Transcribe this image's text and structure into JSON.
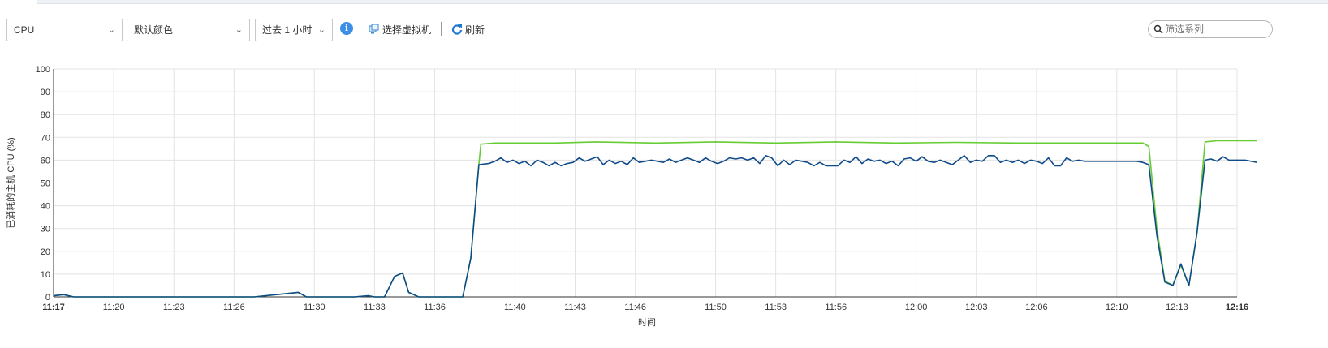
{
  "toolbar": {
    "metric_select": "CPU",
    "color_select": "默认颜色",
    "time_select": "过去 1 小时",
    "select_vm_label": "选择虚拟机",
    "refresh_label": "刷新",
    "filter_placeholder": "筛选系列",
    "info_glyph": "i"
  },
  "chart_data": {
    "type": "line",
    "ylabel": "已消耗的主机 CPU (%)",
    "xlabel": "时间",
    "ylim": [
      0,
      100
    ],
    "yticks": [
      0,
      10,
      20,
      30,
      40,
      50,
      60,
      70,
      80,
      90,
      100
    ],
    "xlim": [
      "11:17",
      "12:16"
    ],
    "xticks": [
      "11:17",
      "11:20",
      "11:23",
      "11:26",
      "11:30",
      "11:33",
      "11:36",
      "11:40",
      "11:43",
      "11:46",
      "11:50",
      "11:53",
      "11:56",
      "12:00",
      "12:03",
      "12:06",
      "12:10",
      "12:13",
      "12:16"
    ],
    "bold_xticks": [
      "11:17",
      "12:16"
    ],
    "grid": true,
    "legend": "none",
    "series": [
      {
        "color": "#66cc33",
        "points": [
          [
            0,
            0.5
          ],
          [
            0.5,
            1
          ],
          [
            1,
            0
          ],
          [
            5,
            0
          ],
          [
            10,
            0
          ],
          [
            12.2,
            2
          ],
          [
            12.6,
            0
          ],
          [
            15,
            0
          ],
          [
            15.7,
            0.5
          ],
          [
            16,
            0
          ],
          [
            16.5,
            0
          ],
          [
            17,
            9
          ],
          [
            17.4,
            10.5
          ],
          [
            17.7,
            2
          ],
          [
            18.2,
            0
          ],
          [
            20,
            0
          ],
          [
            20.4,
            0
          ],
          [
            20.8,
            17
          ],
          [
            21.2,
            58
          ],
          [
            21.3,
            67
          ],
          [
            22,
            67.5
          ],
          [
            25,
            67.5
          ],
          [
            27,
            68
          ],
          [
            30,
            67.5
          ],
          [
            33,
            68
          ],
          [
            36,
            67.5
          ],
          [
            39,
            68
          ],
          [
            42,
            67.5
          ],
          [
            45,
            67.8
          ],
          [
            48,
            67.5
          ],
          [
            50,
            67.5
          ],
          [
            54.3,
            67.5
          ],
          [
            54.6,
            66
          ],
          [
            55,
            30
          ],
          [
            55.4,
            7
          ],
          [
            55.8,
            5
          ],
          [
            56.2,
            14
          ],
          [
            56.6,
            5
          ],
          [
            57,
            28
          ],
          [
            57.4,
            68
          ],
          [
            58,
            68.5
          ],
          [
            60,
            68.5
          ]
        ]
      },
      {
        "color": "#0f4a8a",
        "points": [
          [
            0,
            0.5
          ],
          [
            0.5,
            1
          ],
          [
            1,
            0
          ],
          [
            5,
            0
          ],
          [
            10,
            0
          ],
          [
            12.2,
            2
          ],
          [
            12.6,
            0
          ],
          [
            15,
            0
          ],
          [
            15.7,
            0.5
          ],
          [
            16,
            0
          ],
          [
            16.5,
            0
          ],
          [
            17,
            9
          ],
          [
            17.4,
            10.5
          ],
          [
            17.7,
            2
          ],
          [
            18.2,
            0
          ],
          [
            20,
            0
          ],
          [
            20.4,
            0
          ],
          [
            20.8,
            17
          ],
          [
            21.2,
            58
          ],
          [
            21.7,
            58.5
          ],
          [
            22,
            59.5
          ],
          [
            22.3,
            61
          ],
          [
            22.6,
            59
          ],
          [
            22.9,
            60
          ],
          [
            23.2,
            58.5
          ],
          [
            23.5,
            59.5
          ],
          [
            23.8,
            57.5
          ],
          [
            24.1,
            60
          ],
          [
            24.4,
            59
          ],
          [
            24.7,
            57.5
          ],
          [
            25,
            59
          ],
          [
            25.3,
            57.5
          ],
          [
            25.6,
            58.5
          ],
          [
            25.9,
            59
          ],
          [
            26.2,
            61
          ],
          [
            26.5,
            59.5
          ],
          [
            26.8,
            60.5
          ],
          [
            27.1,
            61.5
          ],
          [
            27.4,
            58
          ],
          [
            27.7,
            60
          ],
          [
            28,
            58.5
          ],
          [
            28.3,
            59.5
          ],
          [
            28.6,
            58
          ],
          [
            28.9,
            61
          ],
          [
            29.2,
            59
          ],
          [
            29.5,
            59.5
          ],
          [
            29.8,
            60
          ],
          [
            30.1,
            59.5
          ],
          [
            30.4,
            59
          ],
          [
            30.7,
            60.5
          ],
          [
            31,
            59
          ],
          [
            31.3,
            60
          ],
          [
            31.6,
            61
          ],
          [
            31.9,
            60
          ],
          [
            32.2,
            59
          ],
          [
            32.5,
            61
          ],
          [
            32.8,
            59.5
          ],
          [
            33.1,
            58.5
          ],
          [
            33.4,
            59.5
          ],
          [
            33.7,
            61
          ],
          [
            34,
            60.5
          ],
          [
            34.3,
            61
          ],
          [
            34.6,
            60
          ],
          [
            34.9,
            61
          ],
          [
            35.2,
            58.5
          ],
          [
            35.5,
            62
          ],
          [
            35.8,
            61
          ],
          [
            36.1,
            57.5
          ],
          [
            36.4,
            60
          ],
          [
            36.7,
            58
          ],
          [
            37,
            60
          ],
          [
            37.3,
            59.5
          ],
          [
            37.6,
            59
          ],
          [
            37.9,
            57.5
          ],
          [
            38.2,
            59
          ],
          [
            38.5,
            57.5
          ],
          [
            38.8,
            57.5
          ],
          [
            39.1,
            57.5
          ],
          [
            39.4,
            60
          ],
          [
            39.7,
            59
          ],
          [
            40,
            61.5
          ],
          [
            40.3,
            58.5
          ],
          [
            40.6,
            60.5
          ],
          [
            40.9,
            59.5
          ],
          [
            41.2,
            60
          ],
          [
            41.5,
            58.5
          ],
          [
            41.8,
            59.5
          ],
          [
            42.1,
            57.5
          ],
          [
            42.4,
            60.5
          ],
          [
            42.7,
            61
          ],
          [
            43,
            59.5
          ],
          [
            43.3,
            61.5
          ],
          [
            43.6,
            59.5
          ],
          [
            43.9,
            59
          ],
          [
            44.2,
            60
          ],
          [
            44.5,
            59
          ],
          [
            44.8,
            58
          ],
          [
            45.1,
            60
          ],
          [
            45.4,
            62
          ],
          [
            45.7,
            59
          ],
          [
            46,
            60
          ],
          [
            46.3,
            59.5
          ],
          [
            46.6,
            62
          ],
          [
            46.9,
            62
          ],
          [
            47.2,
            59
          ],
          [
            47.5,
            60
          ],
          [
            47.8,
            59
          ],
          [
            48.1,
            60
          ],
          [
            48.4,
            58.5
          ],
          [
            48.7,
            60
          ],
          [
            49,
            59.5
          ],
          [
            49.3,
            58.5
          ],
          [
            49.6,
            61
          ],
          [
            49.9,
            57.5
          ],
          [
            50.2,
            57.5
          ],
          [
            50.5,
            61
          ],
          [
            50.8,
            59.5
          ],
          [
            51.1,
            60
          ],
          [
            51.4,
            59.5
          ],
          [
            51.7,
            59.5
          ],
          [
            54,
            59.5
          ],
          [
            54.3,
            59
          ],
          [
            54.6,
            58
          ],
          [
            55,
            27
          ],
          [
            55.4,
            6.5
          ],
          [
            55.8,
            5
          ],
          [
            56.2,
            14.5
          ],
          [
            56.6,
            5
          ],
          [
            57,
            28
          ],
          [
            57.4,
            60
          ],
          [
            57.7,
            60.5
          ],
          [
            58,
            59.5
          ],
          [
            58.3,
            61.5
          ],
          [
            58.6,
            60
          ],
          [
            59,
            60
          ],
          [
            59.4,
            60
          ],
          [
            60,
            59
          ]
        ]
      }
    ]
  }
}
